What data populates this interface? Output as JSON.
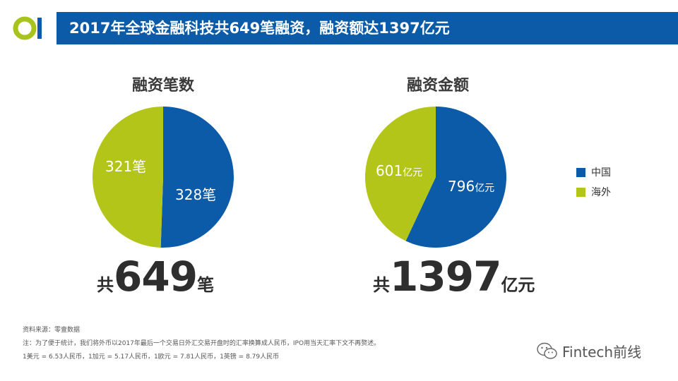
{
  "header": {
    "title": "2017年全球金融科技共649笔融资，融资额达1397亿元"
  },
  "colors": {
    "brand_blue": "#0b5ba8",
    "china": "#0b5ba8",
    "overseas": "#b4c51a",
    "logo_green": "#a8c41a"
  },
  "chart_data": [
    {
      "type": "pie",
      "title": "融资笔数",
      "categories": [
        "中国",
        "海外"
      ],
      "values": [
        328,
        321
      ],
      "labels": [
        "328笔",
        "321笔"
      ],
      "total_prefix": "共",
      "total_value": "649",
      "total_suffix": "笔"
    },
    {
      "type": "pie",
      "title": "融资金额",
      "categories": [
        "中国",
        "海外"
      ],
      "values": [
        796,
        601
      ],
      "labels": [
        {
          "num": "796",
          "unit": "亿元"
        },
        {
          "num": "601",
          "unit": "亿元"
        }
      ],
      "total_prefix": "共",
      "total_value": "1397",
      "total_suffix": "亿元"
    }
  ],
  "legend": [
    {
      "name": "中国",
      "color": "#0b5ba8"
    },
    {
      "name": "海外",
      "color": "#b4c51a"
    }
  ],
  "notes": {
    "source": "资料来源：零壹数据",
    "note1": "注：为了便于统计，我们将外币以2017年最后一个交易日外汇交易开盘时的汇率换算成人民币，IPO用当天汇率下文不再赘述。",
    "note2": "1美元 = 6.53人民币，1加元 = 5.17人民币，1欧元 = 7.81人民币，1英镑 = 8.79人民币"
  },
  "brand": {
    "text": "Fintech前线",
    "icon": "wechat-icon"
  }
}
